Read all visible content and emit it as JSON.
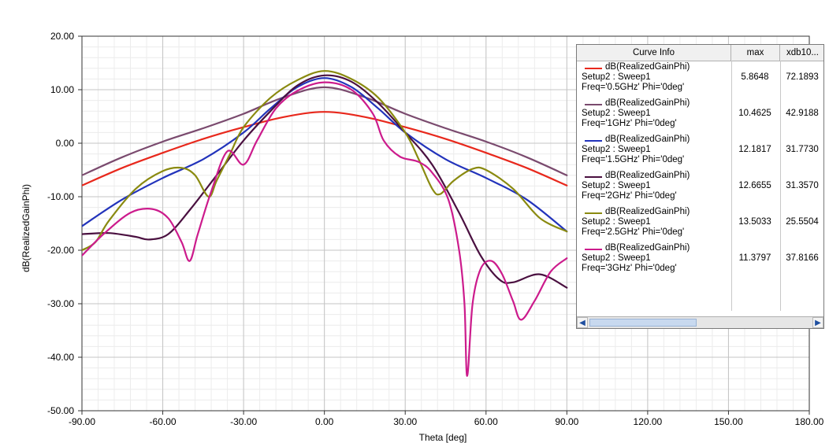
{
  "chart_data": {
    "type": "line",
    "xlabel": "Theta [deg]",
    "ylabel": "dB(RealizedGainPhi)",
    "xlim": [
      -90,
      180
    ],
    "ylim": [
      -50,
      20
    ],
    "x_ticks": [
      "-90.00",
      "-60.00",
      "-30.00",
      "0.00",
      "30.00",
      "60.00",
      "90.00",
      "120.00",
      "150.00",
      "180.00"
    ],
    "y_ticks": [
      "20.00",
      "10.00",
      "0.00",
      "-10.00",
      "-20.00",
      "-30.00",
      "-40.00",
      "-50.00"
    ],
    "grid": true,
    "legend_placement": "top-right",
    "series": [
      {
        "name": "dB(RealizedGainPhi)",
        "setup": "Setup2 : Sweep1",
        "freq": "Freq='0.5GHz' Phi='0deg'",
        "max": "5.8648",
        "xdb": "72.1893",
        "color": "#e8281c",
        "points": [
          [
            -90,
            -7.9
          ],
          [
            -75,
            -4.6
          ],
          [
            -60,
            -1.8
          ],
          [
            -45,
            0.8
          ],
          [
            -30,
            3.0
          ],
          [
            -15,
            4.9
          ],
          [
            0,
            5.86
          ],
          [
            15,
            4.9
          ],
          [
            30,
            3.0
          ],
          [
            45,
            0.8
          ],
          [
            60,
            -1.8
          ],
          [
            75,
            -4.6
          ],
          [
            90,
            -7.9
          ]
        ]
      },
      {
        "name": "dB(RealizedGainPhi)",
        "setup": "Setup2 : Sweep1",
        "freq": "Freq='1GHz' Phi='0deg'",
        "max": "10.4625",
        "xdb": "42.9188",
        "color": "#7a4a6e",
        "points": [
          [
            -90,
            -6.0
          ],
          [
            -75,
            -2.6
          ],
          [
            -60,
            0.3
          ],
          [
            -45,
            2.8
          ],
          [
            -30,
            5.5
          ],
          [
            -15,
            8.6
          ],
          [
            0,
            10.46
          ],
          [
            15,
            8.6
          ],
          [
            30,
            5.5
          ],
          [
            45,
            2.8
          ],
          [
            60,
            0.3
          ],
          [
            75,
            -2.6
          ],
          [
            90,
            -6.0
          ]
        ]
      },
      {
        "name": "dB(RealizedGainPhi)",
        "setup": "Setup2 : Sweep1",
        "freq": "Freq='1.5GHz' Phi='0deg'",
        "max": "12.1817",
        "xdb": "31.7730",
        "color": "#2233bb",
        "points": [
          [
            -90,
            -15.5
          ],
          [
            -75,
            -10.5
          ],
          [
            -60,
            -6.5
          ],
          [
            -45,
            -3.0
          ],
          [
            -30,
            2.0
          ],
          [
            -20,
            6.5
          ],
          [
            -10,
            10.5
          ],
          [
            0,
            12.18
          ],
          [
            10,
            10.5
          ],
          [
            20,
            6.5
          ],
          [
            30,
            2.0
          ],
          [
            45,
            -3.0
          ],
          [
            60,
            -6.5
          ],
          [
            75,
            -10.5
          ],
          [
            90,
            -16.5
          ]
        ]
      },
      {
        "name": "dB(RealizedGainPhi)",
        "setup": "Setup2 : Sweep1",
        "freq": "Freq='2GHz' Phi='0deg'",
        "max": "12.6655",
        "xdb": "31.3570",
        "color": "#4a1040",
        "points": [
          [
            -90,
            -17.0
          ],
          [
            -80,
            -16.8
          ],
          [
            -70,
            -17.5
          ],
          [
            -65,
            -18.0
          ],
          [
            -58,
            -17.0
          ],
          [
            -50,
            -12.5
          ],
          [
            -40,
            -6.0
          ],
          [
            -30,
            0.5
          ],
          [
            -20,
            6.0
          ],
          [
            -10,
            10.8
          ],
          [
            0,
            12.67
          ],
          [
            10,
            11.5
          ],
          [
            20,
            7.5
          ],
          [
            30,
            2.0
          ],
          [
            40,
            -4.0
          ],
          [
            50,
            -13.0
          ],
          [
            58,
            -21.0
          ],
          [
            65,
            -25.5
          ],
          [
            70,
            -26.0
          ],
          [
            80,
            -24.5
          ],
          [
            90,
            -27.0
          ]
        ]
      },
      {
        "name": "dB(RealizedGainPhi)",
        "setup": "Setup2 : Sweep1",
        "freq": "Freq='2.5GHz' Phi='0deg'",
        "max": "13.5033",
        "xdb": "25.5504",
        "color": "#8a8a10",
        "points": [
          [
            -90,
            -20.0
          ],
          [
            -85,
            -18.5
          ],
          [
            -80,
            -14.5
          ],
          [
            -70,
            -8.5
          ],
          [
            -60,
            -5.2
          ],
          [
            -53,
            -4.6
          ],
          [
            -48,
            -6.0
          ],
          [
            -43,
            -10.0
          ],
          [
            -40,
            -7.0
          ],
          [
            -35,
            -2.0
          ],
          [
            -30,
            3.0
          ],
          [
            -20,
            8.5
          ],
          [
            -10,
            11.8
          ],
          [
            0,
            13.5
          ],
          [
            10,
            12.0
          ],
          [
            20,
            8.5
          ],
          [
            30,
            2.0
          ],
          [
            35,
            -3.0
          ],
          [
            40,
            -8.5
          ],
          [
            43,
            -9.5
          ],
          [
            48,
            -7.0
          ],
          [
            55,
            -4.8
          ],
          [
            60,
            -5.0
          ],
          [
            70,
            -8.5
          ],
          [
            80,
            -14.0
          ],
          [
            90,
            -16.5
          ]
        ]
      },
      {
        "name": "dB(RealizedGainPhi)",
        "setup": "Setup2 : Sweep1",
        "freq": "Freq='3GHz' Phi='0deg'",
        "max": "11.3797",
        "xdb": "37.8166",
        "color": "#cc1b8c",
        "points": [
          [
            -90,
            -21.0
          ],
          [
            -82,
            -17.0
          ],
          [
            -72,
            -13.0
          ],
          [
            -64,
            -12.3
          ],
          [
            -58,
            -14.0
          ],
          [
            -53,
            -18.5
          ],
          [
            -50,
            -22.0
          ],
          [
            -47,
            -17.0
          ],
          [
            -42,
            -9.0
          ],
          [
            -36,
            -1.5
          ],
          [
            -30,
            -4.0
          ],
          [
            -25,
            0.5
          ],
          [
            -18,
            6.5
          ],
          [
            -10,
            9.8
          ],
          [
            0,
            11.38
          ],
          [
            10,
            10.0
          ],
          [
            18,
            5.5
          ],
          [
            22,
            0.5
          ],
          [
            28,
            -2.5
          ],
          [
            35,
            -3.5
          ],
          [
            40,
            -5.5
          ],
          [
            46,
            -10.5
          ],
          [
            50,
            -20.0
          ],
          [
            52,
            -30.0
          ],
          [
            53,
            -43.5
          ],
          [
            55,
            -30.0
          ],
          [
            58,
            -23.5
          ],
          [
            62,
            -22.0
          ],
          [
            66,
            -24.5
          ],
          [
            70,
            -29.5
          ],
          [
            73,
            -33.0
          ],
          [
            78,
            -29.5
          ],
          [
            84,
            -24.0
          ],
          [
            90,
            -21.5
          ]
        ]
      }
    ],
    "legend": {
      "header_curve": "Curve Info",
      "header_max": "max",
      "header_xdb": "xdb10..."
    }
  }
}
